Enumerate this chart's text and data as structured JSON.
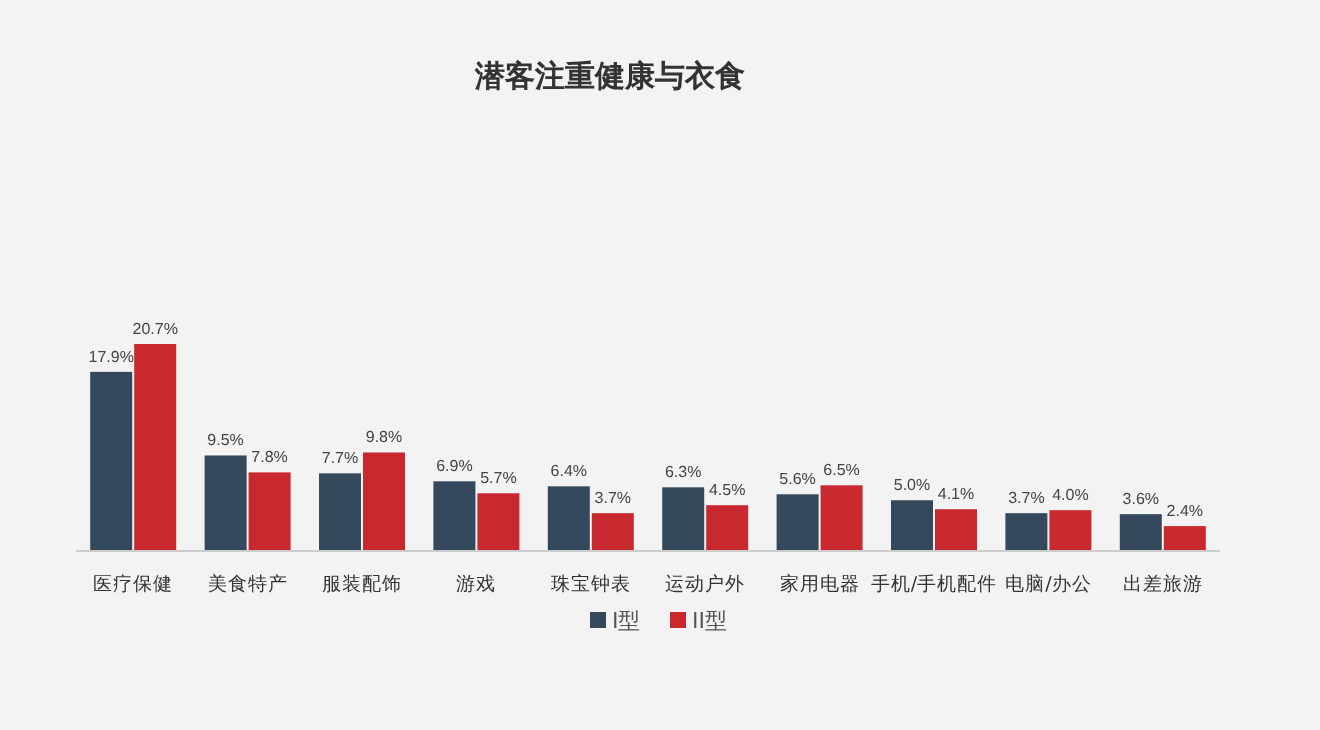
{
  "chart_data": {
    "type": "bar",
    "title": "潜客注重健康与衣食",
    "categories": [
      "医疗保健",
      "美食特产",
      "服装配饰",
      "游戏",
      "珠宝钟表",
      "运动户外",
      "家用电器",
      "手机/手机配件",
      "电脑/办公",
      "出差旅游"
    ],
    "series": [
      {
        "name": "I型",
        "color": "#344a5c",
        "values": [
          17.9,
          9.5,
          7.7,
          6.9,
          6.4,
          6.3,
          5.6,
          5.0,
          3.7,
          3.6
        ],
        "value_labels": [
          "17.9%",
          "9.5%",
          "7.7%",
          "6.9%",
          "6.4%",
          "6.3%",
          "5.6%",
          "5.0%",
          "3.7%",
          "3.6%"
        ]
      },
      {
        "name": "II型",
        "color": "#c9282f",
        "values": [
          20.7,
          7.8,
          9.8,
          5.7,
          3.7,
          4.5,
          6.5,
          4.1,
          4.0,
          2.4
        ],
        "value_labels": [
          "20.7%",
          "7.8%",
          "9.8%",
          "5.7%",
          "3.7%",
          "4.5%",
          "6.5%",
          "4.1%",
          "4.0%",
          "2.4%"
        ]
      }
    ],
    "legend": "bottom"
  }
}
